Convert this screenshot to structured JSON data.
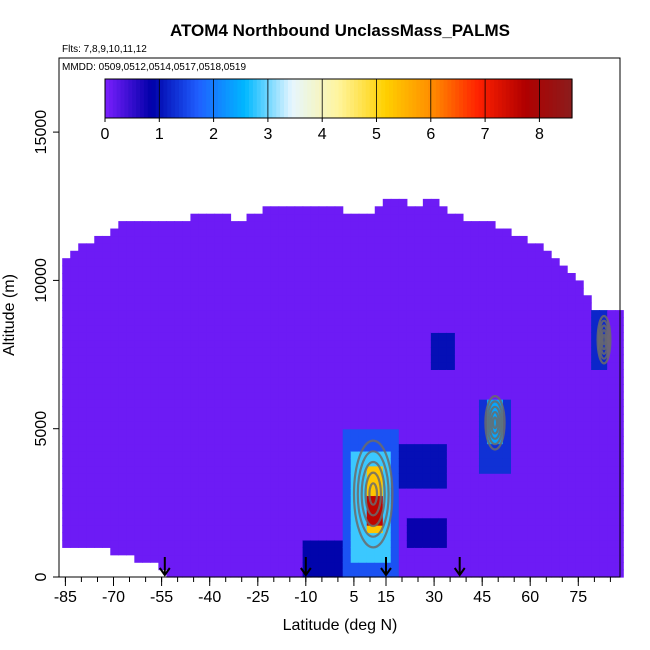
{
  "chart_data": {
    "type": "heatmap",
    "title": "ATOM4 Northbound UnclassMass_PALMS",
    "flights_note": "Flts: 7,8,9,10,11,12",
    "dates_note": "MMDD: 0509,0512,0514,0517,0518,0519",
    "xlabel": "Latitude (deg N)",
    "ylabel": "Altitude (m)",
    "xlim": [
      -87,
      88
    ],
    "ylim": [
      0,
      17500
    ],
    "x_ticks": [
      -85,
      -70,
      -55,
      -40,
      -25,
      -10,
      5,
      15,
      30,
      45,
      60,
      75
    ],
    "y_ticks": [
      0,
      5000,
      10000,
      15000
    ],
    "y_tick_labels": [
      "0",
      "5000",
      "10000",
      "15000"
    ],
    "colorbar": {
      "ticks": [
        0,
        1,
        2,
        3,
        4,
        5,
        6,
        7,
        8
      ],
      "range": [
        0,
        8.6
      ],
      "colors": [
        "#7b1fff",
        "#0000a8",
        "#1f5fff",
        "#00b8ff",
        "#e6f6ff",
        "#fff59d",
        "#ffd000",
        "#ff8c00",
        "#ff2000",
        "#b00000",
        "#8b1c1c"
      ]
    },
    "background_value": 0.1,
    "coverage_top_altitude": [
      [
        -85,
        10500
      ],
      [
        -80,
        11000
      ],
      [
        -70,
        11500
      ],
      [
        -65,
        12000
      ],
      [
        -55,
        12000
      ],
      [
        -45,
        12000
      ],
      [
        -38,
        12200
      ],
      [
        -30,
        11900
      ],
      [
        -20,
        12500
      ],
      [
        -10,
        12500
      ],
      [
        0,
        12300
      ],
      [
        10,
        12000
      ],
      [
        15,
        12500
      ],
      [
        20,
        12700
      ],
      [
        25,
        12300
      ],
      [
        30,
        12700
      ],
      [
        38,
        12000
      ],
      [
        45,
        12000
      ],
      [
        50,
        11700
      ],
      [
        55,
        11500
      ],
      [
        60,
        11200
      ],
      [
        65,
        11000
      ],
      [
        70,
        10500
      ],
      [
        75,
        10000
      ],
      [
        80,
        9000
      ]
    ],
    "coverage_bottom_altitude": [
      [
        -85,
        1000
      ],
      [
        -70,
        1000
      ],
      [
        -56,
        500
      ],
      [
        -50,
        0
      ],
      [
        85,
        0
      ]
    ],
    "features": [
      {
        "lat_min": 1,
        "lat_max": 20,
        "alt_min": 0,
        "alt_max": 5000,
        "value": 1.6
      },
      {
        "lat_min": 5,
        "lat_max": 16,
        "alt_min": 500,
        "alt_max": 4200,
        "value": 2.8
      },
      {
        "lat_min": 8,
        "lat_max": 14,
        "alt_min": 1500,
        "alt_max": 3800,
        "value": 5.3
      },
      {
        "lat_min": 9,
        "lat_max": 13,
        "alt_min": 1800,
        "alt_max": 2800,
        "value": 7.6
      },
      {
        "lat_min": 20,
        "lat_max": 34,
        "alt_min": 3000,
        "alt_max": 4500,
        "value": 1.0
      },
      {
        "lat_min": 45,
        "lat_max": 55,
        "alt_min": 3500,
        "alt_max": 6000,
        "value": 1.3
      },
      {
        "lat_min": 47,
        "lat_max": 51,
        "alt_min": 4500,
        "alt_max": 6000,
        "value": 2.4
      },
      {
        "lat_min": 30,
        "lat_max": 37,
        "alt_min": 7000,
        "alt_max": 8200,
        "value": 1.0
      },
      {
        "lat_min": 80,
        "lat_max": 85,
        "alt_min": 7000,
        "alt_max": 9000,
        "value": 1.2
      },
      {
        "lat_min": -12,
        "lat_max": 2,
        "alt_min": 0,
        "alt_max": 1200,
        "value": 0.9
      },
      {
        "lat_min": 22,
        "lat_max": 35,
        "alt_min": 1000,
        "alt_max": 2000,
        "value": 0.8
      }
    ],
    "contour_centers": [
      {
        "lat": 11,
        "alt": 2800,
        "rx": 6,
        "ry": 1800
      },
      {
        "lat": 49,
        "alt": 5200,
        "rx": 3,
        "ry": 900
      },
      {
        "lat": 83,
        "alt": 8000,
        "rx": 2,
        "ry": 800
      }
    ],
    "profile_arrows_lat": [
      -54,
      -10,
      15,
      38
    ]
  }
}
